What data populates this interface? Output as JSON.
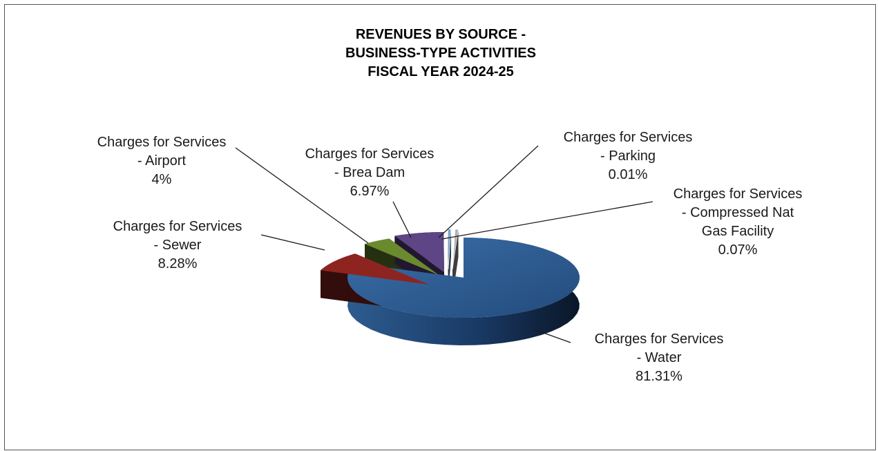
{
  "chart_data": {
    "type": "pie",
    "title_lines": [
      "REVENUES BY SOURCE -",
      "BUSINESS-TYPE ACTIVITIES",
      "FISCAL YEAR 2024-25"
    ],
    "slices": [
      {
        "label_lines": [
          "Charges for Services",
          "- Water"
        ],
        "percent_text": "81.31%",
        "value": 81.31,
        "color": "#2e5f96"
      },
      {
        "label_lines": [
          "Charges for Services",
          "- Sewer"
        ],
        "percent_text": "8.28%",
        "value": 8.28,
        "color": "#8e2420"
      },
      {
        "label_lines": [
          "Charges for Services",
          "- Airport"
        ],
        "percent_text": "4%",
        "value": 4.0,
        "color": "#6a8a2e"
      },
      {
        "label_lines": [
          "Charges for Services",
          "- Brea Dam"
        ],
        "percent_text": "6.97%",
        "value": 6.97,
        "color": "#5e4585"
      },
      {
        "label_lines": [
          "Charges for Services",
          "- Parking"
        ],
        "percent_text": "0.01%",
        "value": 0.01,
        "color": "#7fa6cf"
      },
      {
        "label_lines": [
          "Charges for Services",
          "- Compressed Nat",
          "Gas Facility"
        ],
        "percent_text": "0.07%",
        "value": 0.07,
        "color": "#b0b0b0"
      }
    ]
  }
}
